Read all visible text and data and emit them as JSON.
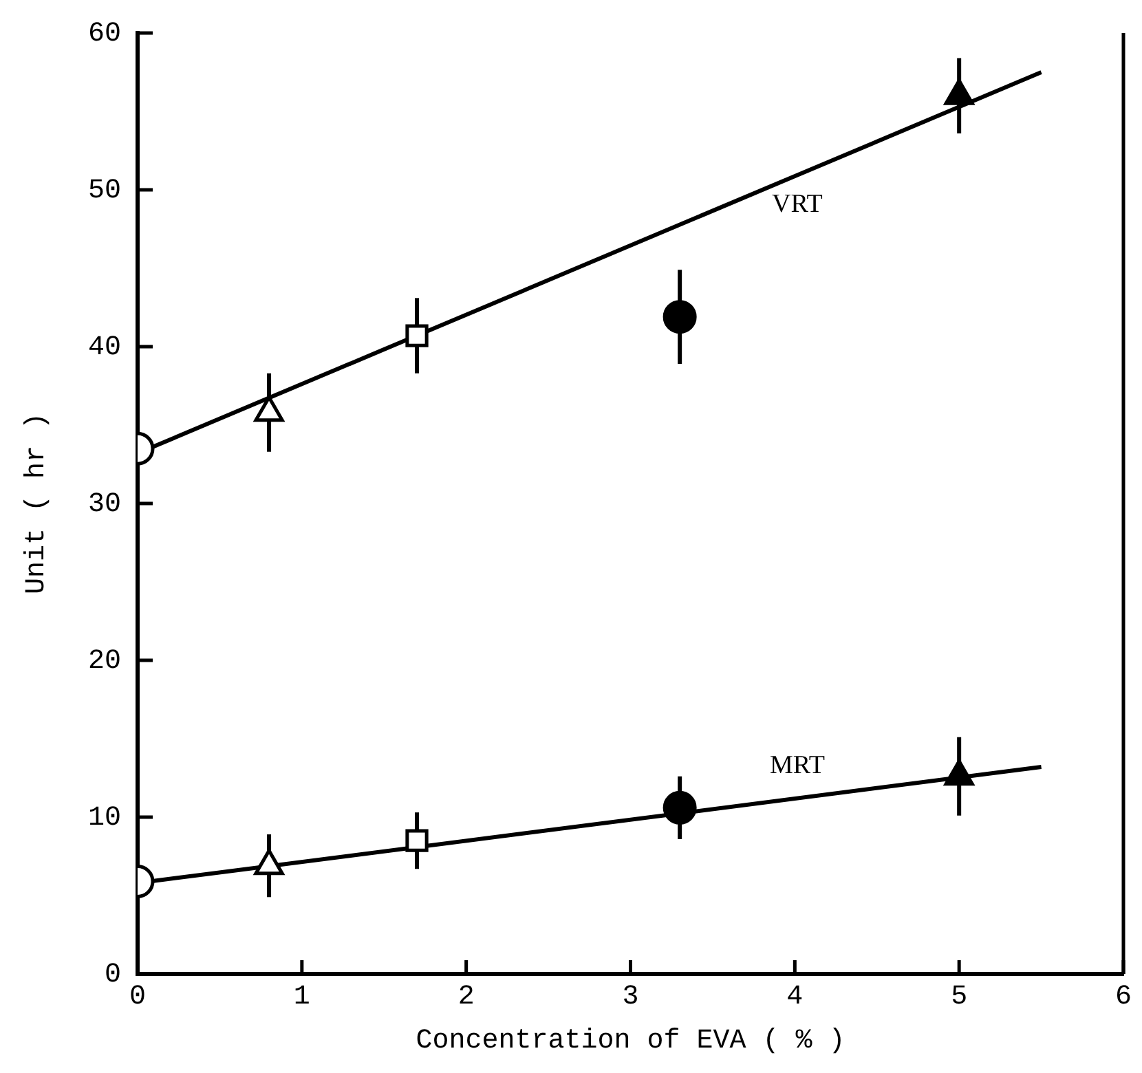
{
  "chart_data": {
    "type": "scatter",
    "xlabel": "Concentration of EVA ( % )",
    "ylabel": "Unit ( hr )",
    "xlim": [
      0,
      6
    ],
    "xticks": [
      0,
      1,
      2,
      3,
      4,
      5,
      6
    ],
    "ylim": [
      0,
      60
    ],
    "yticks": [
      0,
      10,
      20,
      30,
      40,
      50,
      60
    ],
    "grid": false,
    "legend": false,
    "series": [
      {
        "type": "line",
        "name": "VRT",
        "color": "#000000",
        "x": [
          0,
          5.5
        ],
        "values": [
          33.2,
          57.5
        ],
        "marker": "none"
      },
      {
        "type": "line",
        "name": "MRT",
        "color": "#000000",
        "x": [
          0,
          5.5
        ],
        "values": [
          5.8,
          13.2
        ],
        "marker": "none"
      },
      {
        "color": "#000000",
        "colors": [
          "#ffffff",
          "#ffffff"
        ],
        "marker": "circle",
        "x": [
          0,
          0
        ],
        "values": [
          33.5,
          5.9
        ]
      },
      {
        "color": "#000000",
        "colors": [
          "#ffffff",
          "#ffffff"
        ],
        "marker": "triangle",
        "x": [
          0.8,
          0.8
        ],
        "values": [
          35.8,
          6.9
        ],
        "errors": [
          2.5,
          2.0
        ]
      },
      {
        "color": "#000000",
        "colors": [
          "#ffffff",
          "#ffffff"
        ],
        "marker": "square",
        "x": [
          1.7,
          1.7
        ],
        "values": [
          40.7,
          8.5
        ],
        "errors": [
          2.4,
          1.8
        ]
      },
      {
        "color": "#000000",
        "marker": "circle",
        "x": [
          3.3,
          3.3
        ],
        "values": [
          41.9,
          10.6
        ],
        "errors": [
          3.0,
          2.0
        ]
      },
      {
        "color": "#000000",
        "marker": "triangle",
        "x": [
          5,
          5
        ],
        "values": [
          56.0,
          12.6
        ],
        "errors": [
          2.4,
          2.5
        ]
      }
    ]
  }
}
